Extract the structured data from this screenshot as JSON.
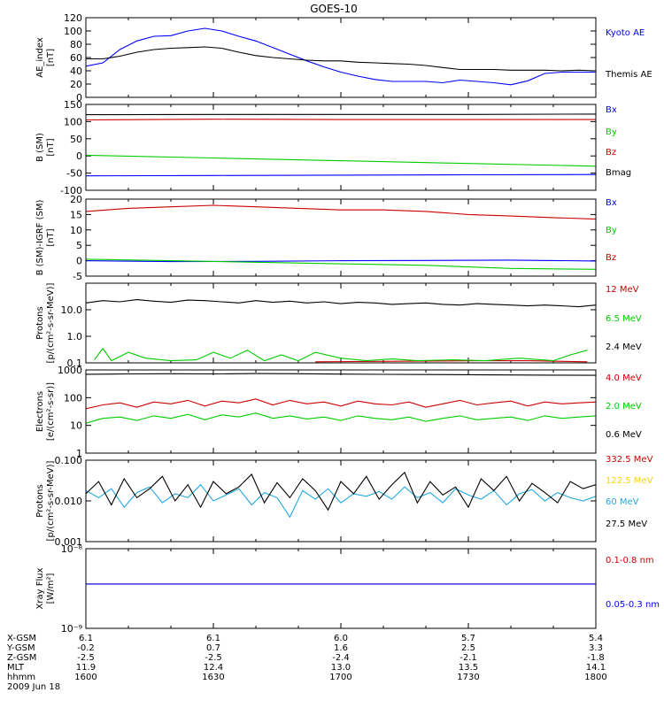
{
  "title": "GOES-10",
  "colors": {
    "black": "#000000",
    "blue": "#0000ff",
    "red": "#cc0000",
    "green": "#00cc00",
    "yellow": "#ffd200",
    "cyan": "#22a9e0"
  },
  "chart_data": [
    {
      "type": "line",
      "ylabel": [
        "AE_index",
        "[nT]"
      ],
      "ylim": [
        0,
        120
      ],
      "scale": "linear",
      "yticks": [
        {
          "v": 0,
          "t": "0"
        },
        {
          "v": 20,
          "t": "20"
        },
        {
          "v": 40,
          "t": "40"
        },
        {
          "v": 60,
          "t": "60"
        },
        {
          "v": 80,
          "t": "80"
        },
        {
          "v": 100,
          "t": "100"
        },
        {
          "v": 120,
          "t": "120"
        }
      ],
      "series": [
        {
          "name": "Kyoto AE",
          "color": "#0000ff",
          "x": [
            0,
            4,
            8,
            12,
            16,
            20,
            24,
            28,
            32,
            36,
            40,
            44,
            48,
            52,
            56,
            60,
            64,
            68,
            72,
            76,
            80,
            84,
            88,
            92,
            96,
            100,
            104,
            108,
            112,
            116,
            120
          ],
          "y": [
            47,
            52,
            72,
            85,
            92,
            93,
            100,
            104,
            100,
            92,
            85,
            75,
            65,
            55,
            46,
            38,
            32,
            27,
            24,
            24,
            24,
            22,
            26,
            24,
            22,
            19,
            25,
            36,
            38,
            38,
            38
          ]
        },
        {
          "name": "Themis AE",
          "color": "#000000",
          "x": [
            0,
            4,
            8,
            12,
            16,
            20,
            24,
            28,
            32,
            36,
            40,
            44,
            48,
            52,
            56,
            60,
            64,
            68,
            72,
            76,
            80,
            84,
            88,
            92,
            96,
            100,
            104,
            108,
            112,
            116,
            120
          ],
          "y": [
            58,
            58,
            62,
            68,
            72,
            74,
            75,
            76,
            74,
            68,
            63,
            60,
            58,
            56,
            55,
            55,
            53,
            52,
            51,
            50,
            48,
            45,
            42,
            42,
            42,
            41,
            41,
            41,
            40,
            41,
            40
          ]
        }
      ]
    },
    {
      "type": "line",
      "ylabel": [
        "B (SM)",
        "[nT]"
      ],
      "ylim": [
        -100,
        150
      ],
      "scale": "linear",
      "yticks": [
        {
          "v": -100,
          "t": "-100"
        },
        {
          "v": -50,
          "t": "-50"
        },
        {
          "v": 0,
          "t": "0"
        },
        {
          "v": 50,
          "t": "50"
        },
        {
          "v": 100,
          "t": "100"
        },
        {
          "v": 150,
          "t": "150"
        }
      ],
      "series": [
        {
          "name": "Bx",
          "color": "#0000ff",
          "x": [
            0,
            30,
            60,
            90,
            120
          ],
          "y": [
            -58,
            -57,
            -56,
            -55,
            -54
          ]
        },
        {
          "name": "By",
          "color": "#00cc00",
          "x": [
            0,
            30,
            60,
            90,
            120
          ],
          "y": [
            2,
            -6,
            -14,
            -22,
            -30
          ]
        },
        {
          "name": "Bz",
          "color": "#cc0000",
          "x": [
            0,
            30,
            60,
            90,
            120
          ],
          "y": [
            105,
            107,
            106,
            106,
            106
          ]
        },
        {
          "name": "Bmag",
          "color": "#000000",
          "x": [
            0,
            30,
            60,
            90,
            120
          ],
          "y": [
            120,
            121,
            121,
            121,
            122
          ]
        }
      ]
    },
    {
      "type": "line",
      "ylabel": [
        "B (SM)-IGRF (SM)",
        "[nT]"
      ],
      "ylim": [
        -5,
        20
      ],
      "scale": "linear",
      "yticks": [
        {
          "v": -5,
          "t": "-5"
        },
        {
          "v": 0,
          "t": "0"
        },
        {
          "v": 5,
          "t": "5"
        },
        {
          "v": 10,
          "t": "10"
        },
        {
          "v": 15,
          "t": "15"
        },
        {
          "v": 20,
          "t": "20"
        }
      ],
      "series": [
        {
          "name": "Bx",
          "color": "#0000ff",
          "x": [
            0,
            20,
            40,
            60,
            80,
            100,
            120
          ],
          "y": [
            0,
            -0.3,
            -0.2,
            0,
            0.1,
            0.2,
            -0.1
          ]
        },
        {
          "name": "By",
          "color": "#00cc00",
          "x": [
            0,
            20,
            40,
            60,
            80,
            100,
            120
          ],
          "y": [
            0.5,
            0,
            -0.5,
            -1,
            -1.5,
            -2.5,
            -2.8
          ]
        },
        {
          "name": "Bz",
          "color": "#cc0000",
          "x": [
            0,
            10,
            20,
            30,
            40,
            50,
            60,
            70,
            80,
            90,
            100,
            110,
            120
          ],
          "y": [
            16,
            17,
            17.5,
            18,
            17.5,
            17,
            16.5,
            16.5,
            16,
            15,
            14.5,
            14,
            13.5
          ]
        }
      ]
    },
    {
      "type": "line",
      "ylabel": [
        "Protons",
        "[p/(cm²-s-sr-MeV)]"
      ],
      "ylim": [
        0.1,
        100
      ],
      "scale": "log",
      "yticks": [
        {
          "v": 0.1,
          "t": "0.1"
        },
        {
          "v": 1,
          "t": "1.0"
        },
        {
          "v": 10,
          "t": "10.0"
        }
      ],
      "series": [
        {
          "name": "12 MeV",
          "color": "#cc0000",
          "x": [
            54,
            92,
            104,
            118
          ],
          "y": [
            0.11,
            0.12,
            0.12,
            0.11
          ]
        },
        {
          "name": "6.5 MeV",
          "color": "#00cc00",
          "x": [
            2,
            4,
            6,
            10,
            14,
            20,
            26,
            30,
            34,
            38,
            42,
            46,
            50,
            54,
            60,
            66,
            72,
            78,
            86,
            94,
            102,
            110,
            114,
            118
          ],
          "y": [
            0.13,
            0.35,
            0.12,
            0.25,
            0.15,
            0.12,
            0.13,
            0.25,
            0.15,
            0.3,
            0.12,
            0.2,
            0.12,
            0.25,
            0.15,
            0.12,
            0.14,
            0.12,
            0.13,
            0.12,
            0.15,
            0.12,
            0.2,
            0.3
          ]
        },
        {
          "name": "2.4 MeV",
          "color": "#000000",
          "x": [
            0,
            4,
            8,
            12,
            16,
            20,
            24,
            28,
            32,
            36,
            40,
            44,
            48,
            52,
            56,
            60,
            64,
            68,
            72,
            76,
            80,
            84,
            88,
            92,
            96,
            100,
            104,
            108,
            112,
            116,
            120
          ],
          "y": [
            18,
            22,
            20,
            24,
            21,
            19,
            23,
            22,
            20,
            18,
            22,
            19,
            21,
            18,
            20,
            17,
            19,
            18,
            16,
            17,
            18,
            16,
            15,
            17,
            16,
            15,
            14,
            15,
            14,
            13,
            15
          ]
        }
      ]
    },
    {
      "type": "line",
      "ylabel": [
        "Electrons",
        "[e/(cm²-s-sr)]"
      ],
      "ylim": [
        1,
        1000
      ],
      "scale": "log",
      "yticks": [
        {
          "v": 1,
          "t": "1"
        },
        {
          "v": 10,
          "t": "10"
        },
        {
          "v": 100,
          "t": "100"
        },
        {
          "v": 1000,
          "t": "1000"
        }
      ],
      "series": [
        {
          "name": "4.0 MeV",
          "color": "#cc0000",
          "x": [
            0,
            4,
            8,
            12,
            16,
            20,
            24,
            28,
            32,
            36,
            40,
            44,
            48,
            52,
            56,
            60,
            64,
            68,
            72,
            76,
            80,
            84,
            88,
            92,
            96,
            100,
            104,
            108,
            112,
            116,
            120
          ],
          "y": [
            40,
            55,
            65,
            45,
            70,
            60,
            80,
            50,
            75,
            65,
            90,
            55,
            80,
            60,
            70,
            50,
            75,
            60,
            55,
            70,
            45,
            60,
            80,
            55,
            65,
            75,
            50,
            70,
            60,
            65,
            70
          ]
        },
        {
          "name": "2.0 MeV",
          "color": "#00cc00",
          "x": [
            0,
            4,
            8,
            12,
            16,
            20,
            24,
            28,
            32,
            36,
            40,
            44,
            48,
            52,
            56,
            60,
            64,
            68,
            72,
            76,
            80,
            84,
            88,
            92,
            96,
            100,
            104,
            108,
            112,
            116,
            120
          ],
          "y": [
            12,
            18,
            20,
            15,
            22,
            18,
            25,
            16,
            24,
            20,
            28,
            18,
            22,
            17,
            20,
            15,
            22,
            18,
            16,
            20,
            14,
            18,
            22,
            16,
            18,
            20,
            15,
            22,
            18,
            20,
            22
          ]
        },
        {
          "name": "0.6 MeV",
          "color": "#000000",
          "x": [
            0,
            10,
            20,
            30,
            40,
            50,
            60,
            70,
            80,
            90,
            100,
            110,
            120
          ],
          "y": [
            700,
            720,
            730,
            720,
            740,
            730,
            710,
            690,
            680,
            670,
            660,
            650,
            640
          ]
        }
      ]
    },
    {
      "type": "line",
      "ylabel": [
        "Protons",
        "[p/(cm²-s-sr-MeV)]"
      ],
      "ylim": [
        0.001,
        0.1
      ],
      "scale": "log",
      "yticks": [
        {
          "v": 0.001,
          "t": "0.001"
        },
        {
          "v": 0.01,
          "t": "0.010"
        },
        {
          "v": 0.1,
          "t": "0.100"
        }
      ],
      "series": [
        {
          "name": "332.5 MeV",
          "color": "#cc0000",
          "x": [],
          "y": []
        },
        {
          "name": "122.5 MeV",
          "color": "#ffd200",
          "x": [],
          "y": []
        },
        {
          "name": "60 MeV",
          "color": "#22a9e0",
          "x": [
            0,
            3,
            6,
            9,
            12,
            15,
            18,
            21,
            24,
            27,
            30,
            33,
            36,
            39,
            42,
            45,
            48,
            51,
            54,
            57,
            60,
            63,
            66,
            69,
            72,
            75,
            78,
            81,
            84,
            87,
            90,
            93,
            96,
            99,
            102,
            105,
            108,
            111,
            114,
            117,
            120
          ],
          "y": [
            0.018,
            0.012,
            0.02,
            0.007,
            0.016,
            0.022,
            0.009,
            0.015,
            0.012,
            0.025,
            0.01,
            0.014,
            0.02,
            0.008,
            0.016,
            0.012,
            0.004,
            0.018,
            0.011,
            0.02,
            0.009,
            0.015,
            0.013,
            0.017,
            0.011,
            0.022,
            0.012,
            0.016,
            0.009,
            0.02,
            0.014,
            0.011,
            0.018,
            0.008,
            0.015,
            0.019,
            0.01,
            0.016,
            0.012,
            0.01,
            0.013
          ]
        },
        {
          "name": "27.5 MeV",
          "color": "#000000",
          "x": [
            0,
            3,
            6,
            9,
            12,
            15,
            18,
            21,
            24,
            27,
            30,
            33,
            36,
            39,
            42,
            45,
            48,
            51,
            54,
            57,
            60,
            63,
            66,
            69,
            72,
            75,
            78,
            81,
            84,
            87,
            90,
            93,
            96,
            99,
            102,
            105,
            108,
            111,
            114,
            117,
            120
          ],
          "y": [
            0.015,
            0.03,
            0.008,
            0.035,
            0.012,
            0.02,
            0.04,
            0.01,
            0.025,
            0.007,
            0.03,
            0.015,
            0.022,
            0.045,
            0.009,
            0.028,
            0.012,
            0.035,
            0.018,
            0.006,
            0.03,
            0.015,
            0.04,
            0.011,
            0.025,
            0.05,
            0.009,
            0.03,
            0.014,
            0.022,
            0.007,
            0.035,
            0.018,
            0.04,
            0.01,
            0.027,
            0.016,
            0.009,
            0.03,
            0.02,
            0.025
          ]
        }
      ]
    },
    {
      "type": "line",
      "ylabel": [
        "Xray Flux",
        "[W/m²]"
      ],
      "ylim": [
        1e-09,
        1e-08
      ],
      "scale": "log",
      "yticks": [
        {
          "v": 1e-09,
          "t": "10⁻⁹"
        },
        {
          "v": 1e-08,
          "t": "10⁻⁸"
        }
      ],
      "series": [
        {
          "name": "0.1-0.8 nm",
          "color": "#cc0000",
          "x": [
            0,
            120
          ],
          "y": [
            3.6e-09,
            3.6e-09
          ]
        },
        {
          "name": "0.05-0.3 nm",
          "color": "#0000ff",
          "x": [
            0,
            120
          ],
          "y": [
            3.6e-09,
            3.6e-09
          ]
        }
      ]
    }
  ],
  "footer": {
    "row_labels": [
      "X-GSM",
      "Y-GSM",
      "Z-GSM",
      "MLT",
      "hhmm",
      "2009 Jun 18"
    ],
    "columns": [
      {
        "x": 0,
        "vals": [
          "6.1",
          "-0.2",
          "-2.5",
          "11.9",
          "1600"
        ]
      },
      {
        "x": 30,
        "vals": [
          "6.1",
          "0.7",
          "-2.5",
          "12.4",
          "1630"
        ]
      },
      {
        "x": 60,
        "vals": [
          "6.0",
          "1.6",
          "-2.4",
          "13.0",
          "1700"
        ]
      },
      {
        "x": 90,
        "vals": [
          "5.7",
          "2.5",
          "-2.1",
          "13.5",
          "1730"
        ]
      },
      {
        "x": 120,
        "vals": [
          "5.4",
          "3.3",
          "-1.8",
          "14.1",
          "1800"
        ]
      }
    ]
  }
}
